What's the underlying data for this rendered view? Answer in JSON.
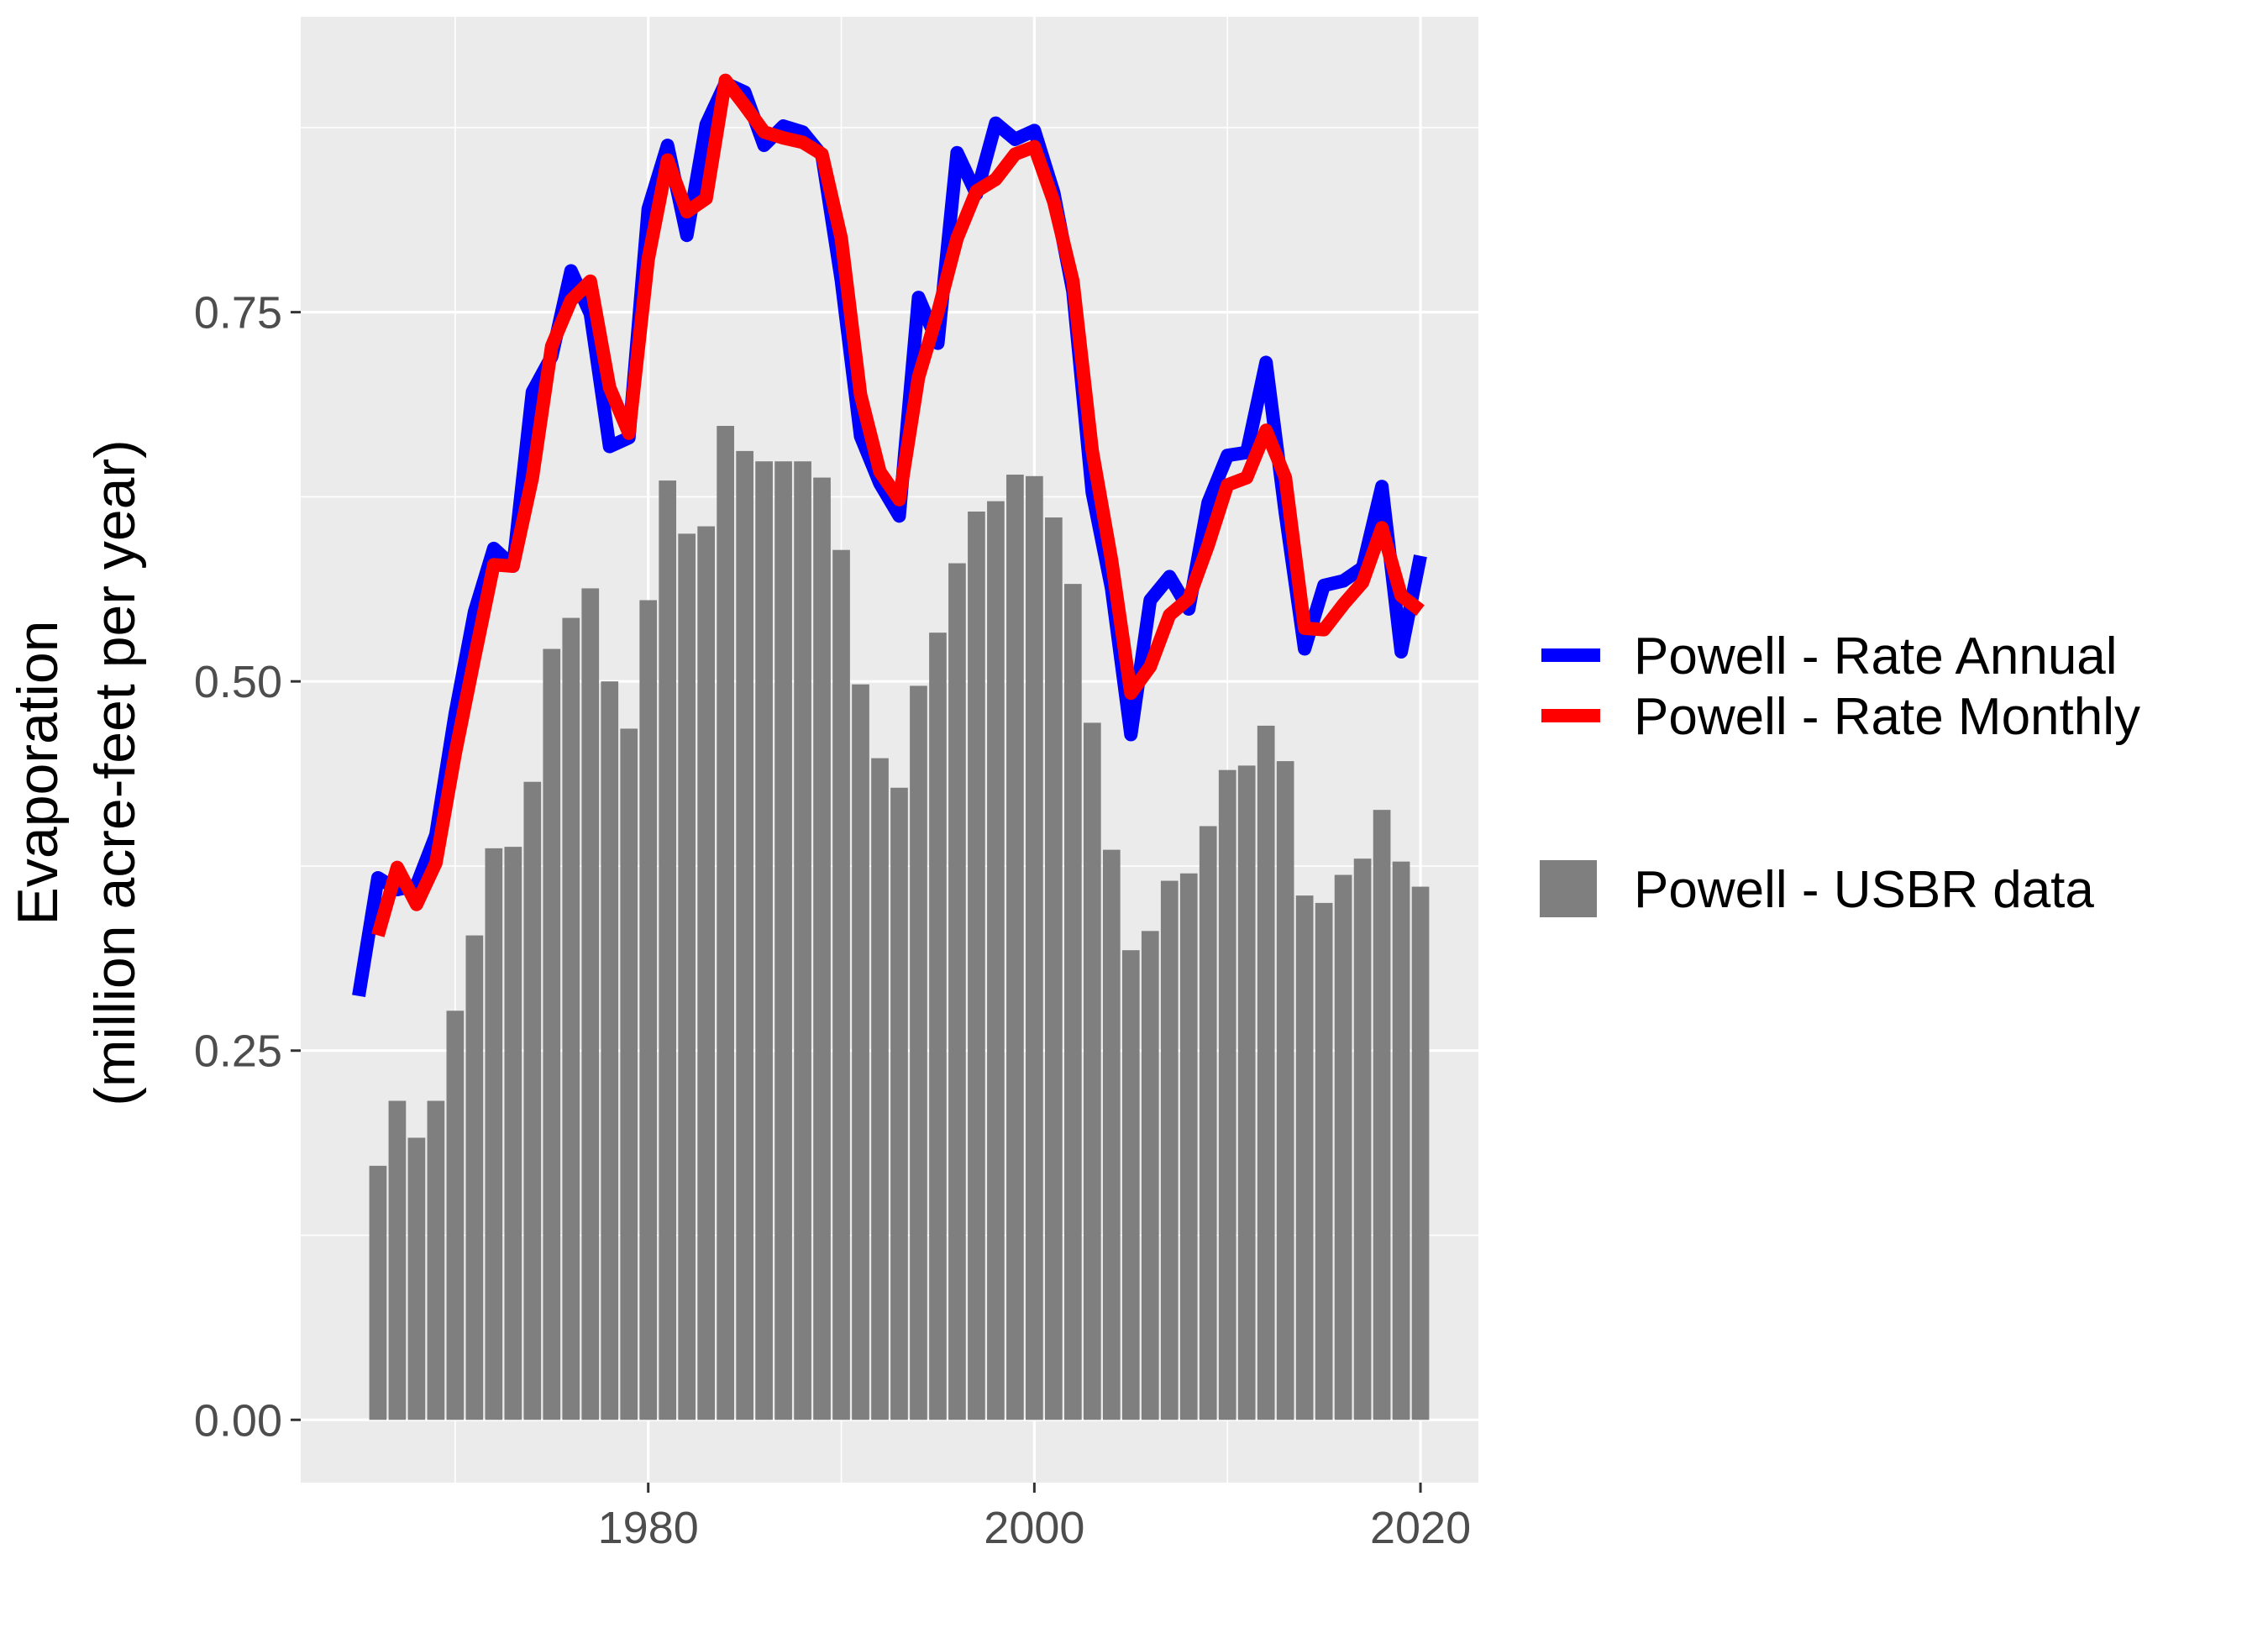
{
  "chart_data": {
    "type": "bar",
    "ylabel_lines": [
      "Evaporation",
      "(million acre-feet per year)"
    ],
    "xlabel": "",
    "xlim": [
      1962,
      2023
    ],
    "ylim": [
      -0.0425,
      0.95
    ],
    "x_ticks": [
      1980,
      2000,
      2020
    ],
    "x_tick_labels": [
      "1980",
      "2000",
      "2020"
    ],
    "y_ticks": [
      0,
      0.25,
      0.5,
      0.75
    ],
    "y_tick_labels": [
      "0.00",
      "0.25",
      "0.50",
      "0.75"
    ],
    "grid": true,
    "legend_position": "right",
    "colors": {
      "panel": "#ebebeb",
      "grid": "#ffffff",
      "bars": "#7f7f7f",
      "annual": "#0000ff",
      "monthly": "#ff0000"
    },
    "bars": {
      "name": "Powell - USBR data",
      "x": [
        1966,
        1967,
        1968,
        1969,
        1970,
        1971,
        1972,
        1973,
        1974,
        1975,
        1976,
        1977,
        1978,
        1979,
        1980,
        1981,
        1982,
        1983,
        1984,
        1985,
        1986,
        1987,
        1988,
        1989,
        1990,
        1991,
        1992,
        1993,
        1994,
        1995,
        1996,
        1997,
        1998,
        1999,
        2000,
        2001,
        2002,
        2003,
        2004,
        2005,
        2006,
        2007,
        2008,
        2009,
        2010,
        2011,
        2012,
        2013,
        2014,
        2015,
        2016,
        2017,
        2018,
        2019,
        2020
      ],
      "values": [
        0.172,
        0.216,
        0.191,
        0.216,
        0.277,
        0.328,
        0.387,
        0.388,
        0.432,
        0.522,
        0.543,
        0.563,
        0.5,
        0.468,
        0.555,
        0.636,
        0.6,
        0.605,
        0.673,
        0.656,
        0.649,
        0.649,
        0.649,
        0.638,
        0.589,
        0.498,
        0.448,
        0.428,
        0.497,
        0.533,
        0.58,
        0.615,
        0.622,
        0.64,
        0.639,
        0.611,
        0.566,
        0.472,
        0.386,
        0.318,
        0.331,
        0.365,
        0.37,
        0.402,
        0.44,
        0.443,
        0.47,
        0.446,
        0.355,
        0.35,
        0.369,
        0.38,
        0.413,
        0.378,
        0.361
      ]
    },
    "series": [
      {
        "name": "Powell - Rate Annual",
        "x": [
          1965,
          1966,
          1967,
          1968,
          1969,
          1970,
          1971,
          1972,
          1973,
          1974,
          1975,
          1976,
          1977,
          1978,
          1979,
          1980,
          1981,
          1982,
          1983,
          1984,
          1985,
          1986,
          1987,
          1988,
          1989,
          1990,
          1991,
          1992,
          1993,
          1994,
          1995,
          1996,
          1997,
          1998,
          1999,
          2000,
          2001,
          2002,
          2003,
          2004,
          2005,
          2006,
          2007,
          2008,
          2009,
          2010,
          2011,
          2012,
          2013,
          2014,
          2015,
          2016,
          2017,
          2018,
          2019,
          2020
        ],
        "values": [
          0.287,
          0.367,
          0.359,
          0.362,
          0.396,
          0.478,
          0.547,
          0.59,
          0.578,
          0.696,
          0.72,
          0.778,
          0.749,
          0.659,
          0.665,
          0.82,
          0.863,
          0.802,
          0.877,
          0.905,
          0.899,
          0.863,
          0.876,
          0.872,
          0.856,
          0.772,
          0.666,
          0.634,
          0.612,
          0.76,
          0.729,
          0.858,
          0.83,
          0.878,
          0.867,
          0.873,
          0.831,
          0.764,
          0.628,
          0.563,
          0.464,
          0.555,
          0.571,
          0.549,
          0.621,
          0.653,
          0.655,
          0.716,
          0.614,
          0.522,
          0.565,
          0.568,
          0.577,
          0.632,
          0.52,
          0.585
        ]
      },
      {
        "name": "Powell - Rate Monthly",
        "x": [
          1966,
          1967,
          1968,
          1969,
          1970,
          1971,
          1972,
          1973,
          1974,
          1975,
          1976,
          1977,
          1978,
          1979,
          1980,
          1981,
          1982,
          1983,
          1984,
          1985,
          1986,
          1987,
          1988,
          1989,
          1990,
          1991,
          1992,
          1993,
          1994,
          1995,
          1996,
          1997,
          1998,
          1999,
          2000,
          2001,
          2002,
          2003,
          2004,
          2005,
          2006,
          2007,
          2008,
          2009,
          2010,
          2011,
          2012,
          2013,
          2014,
          2015,
          2016,
          2017,
          2018,
          2019,
          2020
        ],
        "values": [
          0.328,
          0.374,
          0.349,
          0.377,
          0.451,
          0.516,
          0.579,
          0.578,
          0.638,
          0.727,
          0.758,
          0.771,
          0.699,
          0.668,
          0.786,
          0.853,
          0.818,
          0.827,
          0.907,
          0.89,
          0.872,
          0.868,
          0.865,
          0.857,
          0.8,
          0.694,
          0.642,
          0.623,
          0.706,
          0.75,
          0.8,
          0.832,
          0.84,
          0.857,
          0.862,
          0.825,
          0.771,
          0.656,
          0.582,
          0.492,
          0.51,
          0.545,
          0.556,
          0.592,
          0.633,
          0.638,
          0.67,
          0.638,
          0.536,
          0.535,
          0.552,
          0.567,
          0.604,
          0.558,
          0.548
        ]
      }
    ],
    "legend": {
      "line_entries": [
        "Powell - Rate Annual",
        "Powell - Rate Monthly"
      ],
      "bar_entry": "Powell - USBR data"
    }
  }
}
